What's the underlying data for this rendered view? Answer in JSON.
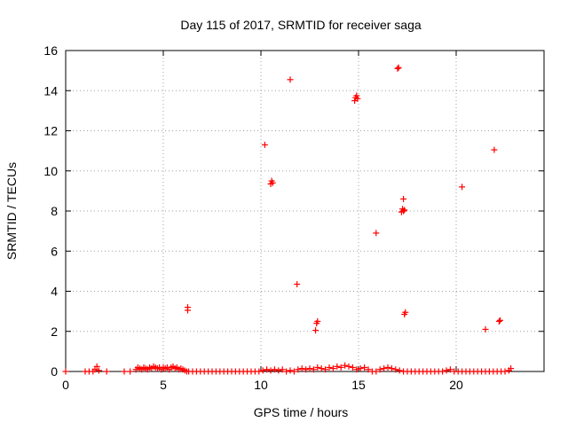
{
  "chart_data": {
    "type": "scatter",
    "title": "Day 115 of 2017, SRMTID for receiver saga",
    "xlabel": "GPS time / hours",
    "ylabel": "SRMTID / TECUs",
    "xlim": [
      0,
      24.5
    ],
    "ylim": [
      0,
      16
    ],
    "xticks": [
      0,
      5,
      10,
      15,
      20
    ],
    "yticks": [
      0,
      2,
      4,
      6,
      8,
      10,
      12,
      14,
      16
    ],
    "grid": true,
    "marker": "+",
    "marker_color": "#ff0000",
    "grid_color": "#a0a0a0",
    "series": [
      {
        "x": [
          0.0,
          1.0,
          1.2,
          1.4,
          1.5,
          1.6,
          1.7,
          2.1,
          3.0,
          3.3,
          3.6,
          3.7,
          3.8,
          3.9,
          4.0,
          4.1,
          4.2,
          4.3,
          4.4,
          4.5,
          4.6,
          4.7,
          4.8,
          4.9,
          5.0,
          5.1,
          5.2,
          5.3,
          5.4,
          5.5,
          5.6,
          5.7,
          5.8,
          5.9,
          6.0,
          6.1,
          6.2,
          6.3,
          6.5,
          6.7,
          6.9,
          7.1,
          7.3,
          7.5,
          7.7,
          7.9,
          8.1,
          8.3,
          8.5,
          8.7,
          8.9,
          9.1,
          9.3,
          9.5,
          9.7,
          9.9,
          10.1,
          10.3,
          10.5,
          10.7,
          10.9,
          11.1,
          11.3,
          11.5,
          11.7,
          11.9,
          12.1,
          12.3,
          12.5,
          12.7,
          12.9,
          13.1,
          13.3,
          13.5,
          13.7,
          13.9,
          14.1,
          14.3,
          14.5,
          14.7,
          14.9,
          15.1,
          15.3,
          15.5,
          15.7,
          15.9,
          16.1,
          16.3,
          16.5,
          16.7,
          16.9,
          17.1,
          17.3,
          17.5,
          17.7,
          17.9,
          18.1,
          18.3,
          18.5,
          18.7,
          18.9,
          19.1,
          19.3,
          19.5,
          19.7,
          19.9,
          20.1,
          20.3,
          20.5,
          20.7,
          20.9,
          21.1,
          21.3,
          21.5,
          21.7,
          21.9,
          22.1,
          22.3,
          22.5,
          22.7,
          22.8,
          6.25,
          6.25,
          10.2,
          10.5,
          10.55,
          10.6,
          11.5,
          11.85,
          12.8,
          12.85,
          12.9,
          14.8,
          14.85,
          14.9,
          14.95,
          15.9,
          17.0,
          17.05,
          17.2,
          17.25,
          17.3,
          17.35,
          17.3,
          17.35,
          17.4,
          20.3,
          21.5,
          21.95,
          22.2,
          22.25
        ],
        "y": [
          0.0,
          0.0,
          0.0,
          0.0,
          0.1,
          0.25,
          0.05,
          0.0,
          0.0,
          0.0,
          0.1,
          0.2,
          0.15,
          0.1,
          0.2,
          0.15,
          0.1,
          0.2,
          0.15,
          0.25,
          0.2,
          0.15,
          0.2,
          0.1,
          0.2,
          0.15,
          0.2,
          0.1,
          0.2,
          0.25,
          0.15,
          0.2,
          0.1,
          0.15,
          0.1,
          0.05,
          0.0,
          0.0,
          0.0,
          0.0,
          0.0,
          0.0,
          0.0,
          0.0,
          0.0,
          0.0,
          0.0,
          0.0,
          0.0,
          0.0,
          0.0,
          0.0,
          0.0,
          0.0,
          0.0,
          0.0,
          0.05,
          0.1,
          0.05,
          0.1,
          0.05,
          0.1,
          0.0,
          0.05,
          0.0,
          0.1,
          0.15,
          0.1,
          0.15,
          0.1,
          0.2,
          0.15,
          0.1,
          0.2,
          0.15,
          0.25,
          0.2,
          0.3,
          0.25,
          0.2,
          0.1,
          0.15,
          0.2,
          0.1,
          0.0,
          0.0,
          0.1,
          0.15,
          0.2,
          0.15,
          0.1,
          0.05,
          0.0,
          0.0,
          0.0,
          0.0,
          0.0,
          0.0,
          0.0,
          0.0,
          0.0,
          0.0,
          0.0,
          0.05,
          0.1,
          0.0,
          0.0,
          0.0,
          0.0,
          0.0,
          0.0,
          0.0,
          0.0,
          0.0,
          0.0,
          0.0,
          0.0,
          0.0,
          0.0,
          0.05,
          0.15,
          3.05,
          3.2,
          11.3,
          9.35,
          9.5,
          9.4,
          14.55,
          4.35,
          2.05,
          2.4,
          2.5,
          13.5,
          13.65,
          13.75,
          13.6,
          6.9,
          15.1,
          15.15,
          7.95,
          8.1,
          8.0,
          8.05,
          8.6,
          2.85,
          2.95,
          9.2,
          2.1,
          11.05,
          2.5,
          2.55
        ]
      }
    ]
  }
}
